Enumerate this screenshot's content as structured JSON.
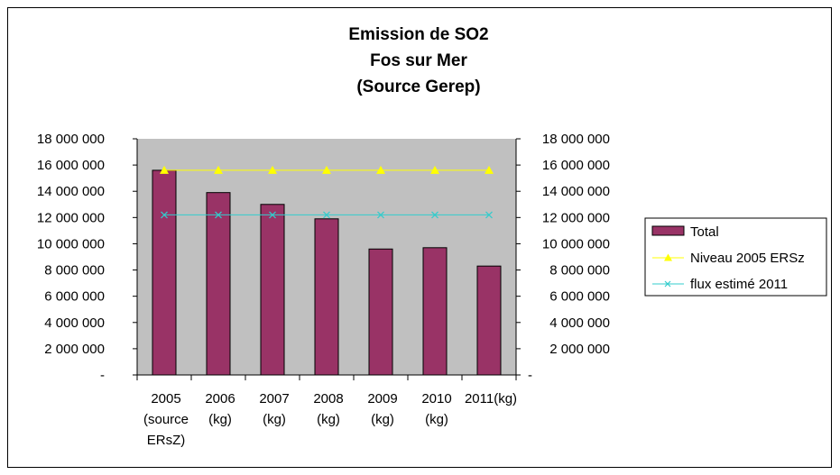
{
  "chart_data": {
    "type": "bar",
    "title_lines": [
      "Emission de SO2",
      "Fos sur Mer",
      "(Source Gerep)"
    ],
    "categories": [
      [
        "2005",
        "(source",
        "ERsZ)"
      ],
      [
        "2006",
        "(kg)"
      ],
      [
        "2007",
        "(kg)"
      ],
      [
        "2008",
        "(kg)"
      ],
      [
        "2009",
        "(kg)"
      ],
      [
        "2010",
        "(kg)"
      ],
      [
        "2011(kg)"
      ]
    ],
    "series": [
      {
        "name": "Total",
        "kind": "bar",
        "color": "#993366",
        "values": [
          15600000,
          13900000,
          13000000,
          11900000,
          9600000,
          9700000,
          8300000
        ]
      },
      {
        "name": "Niveau 2005 ERSz",
        "kind": "line",
        "marker": "triangle",
        "color": "#ffff00",
        "values": [
          15600000,
          15600000,
          15600000,
          15600000,
          15600000,
          15600000,
          15600000
        ]
      },
      {
        "name": "flux estimé 2011",
        "kind": "line",
        "marker": "x",
        "color": "#33cccc",
        "values": [
          12200000,
          12200000,
          12200000,
          12200000,
          12200000,
          12200000,
          12200000
        ]
      }
    ],
    "ylim": [
      0,
      18000000
    ],
    "yticks": [
      0,
      2000000,
      4000000,
      6000000,
      8000000,
      10000000,
      12000000,
      14000000,
      16000000,
      18000000
    ],
    "ytick_labels": [
      "-",
      "2 000 000",
      "4 000 000",
      "6 000 000",
      "8 000 000",
      "10 000 000",
      "12 000 000",
      "14 000 000",
      "16 000 000",
      "18 000 000"
    ],
    "secondary_y_axis": true,
    "plot_background": "#c0c0c0",
    "grid": false,
    "legend_position": "right"
  }
}
